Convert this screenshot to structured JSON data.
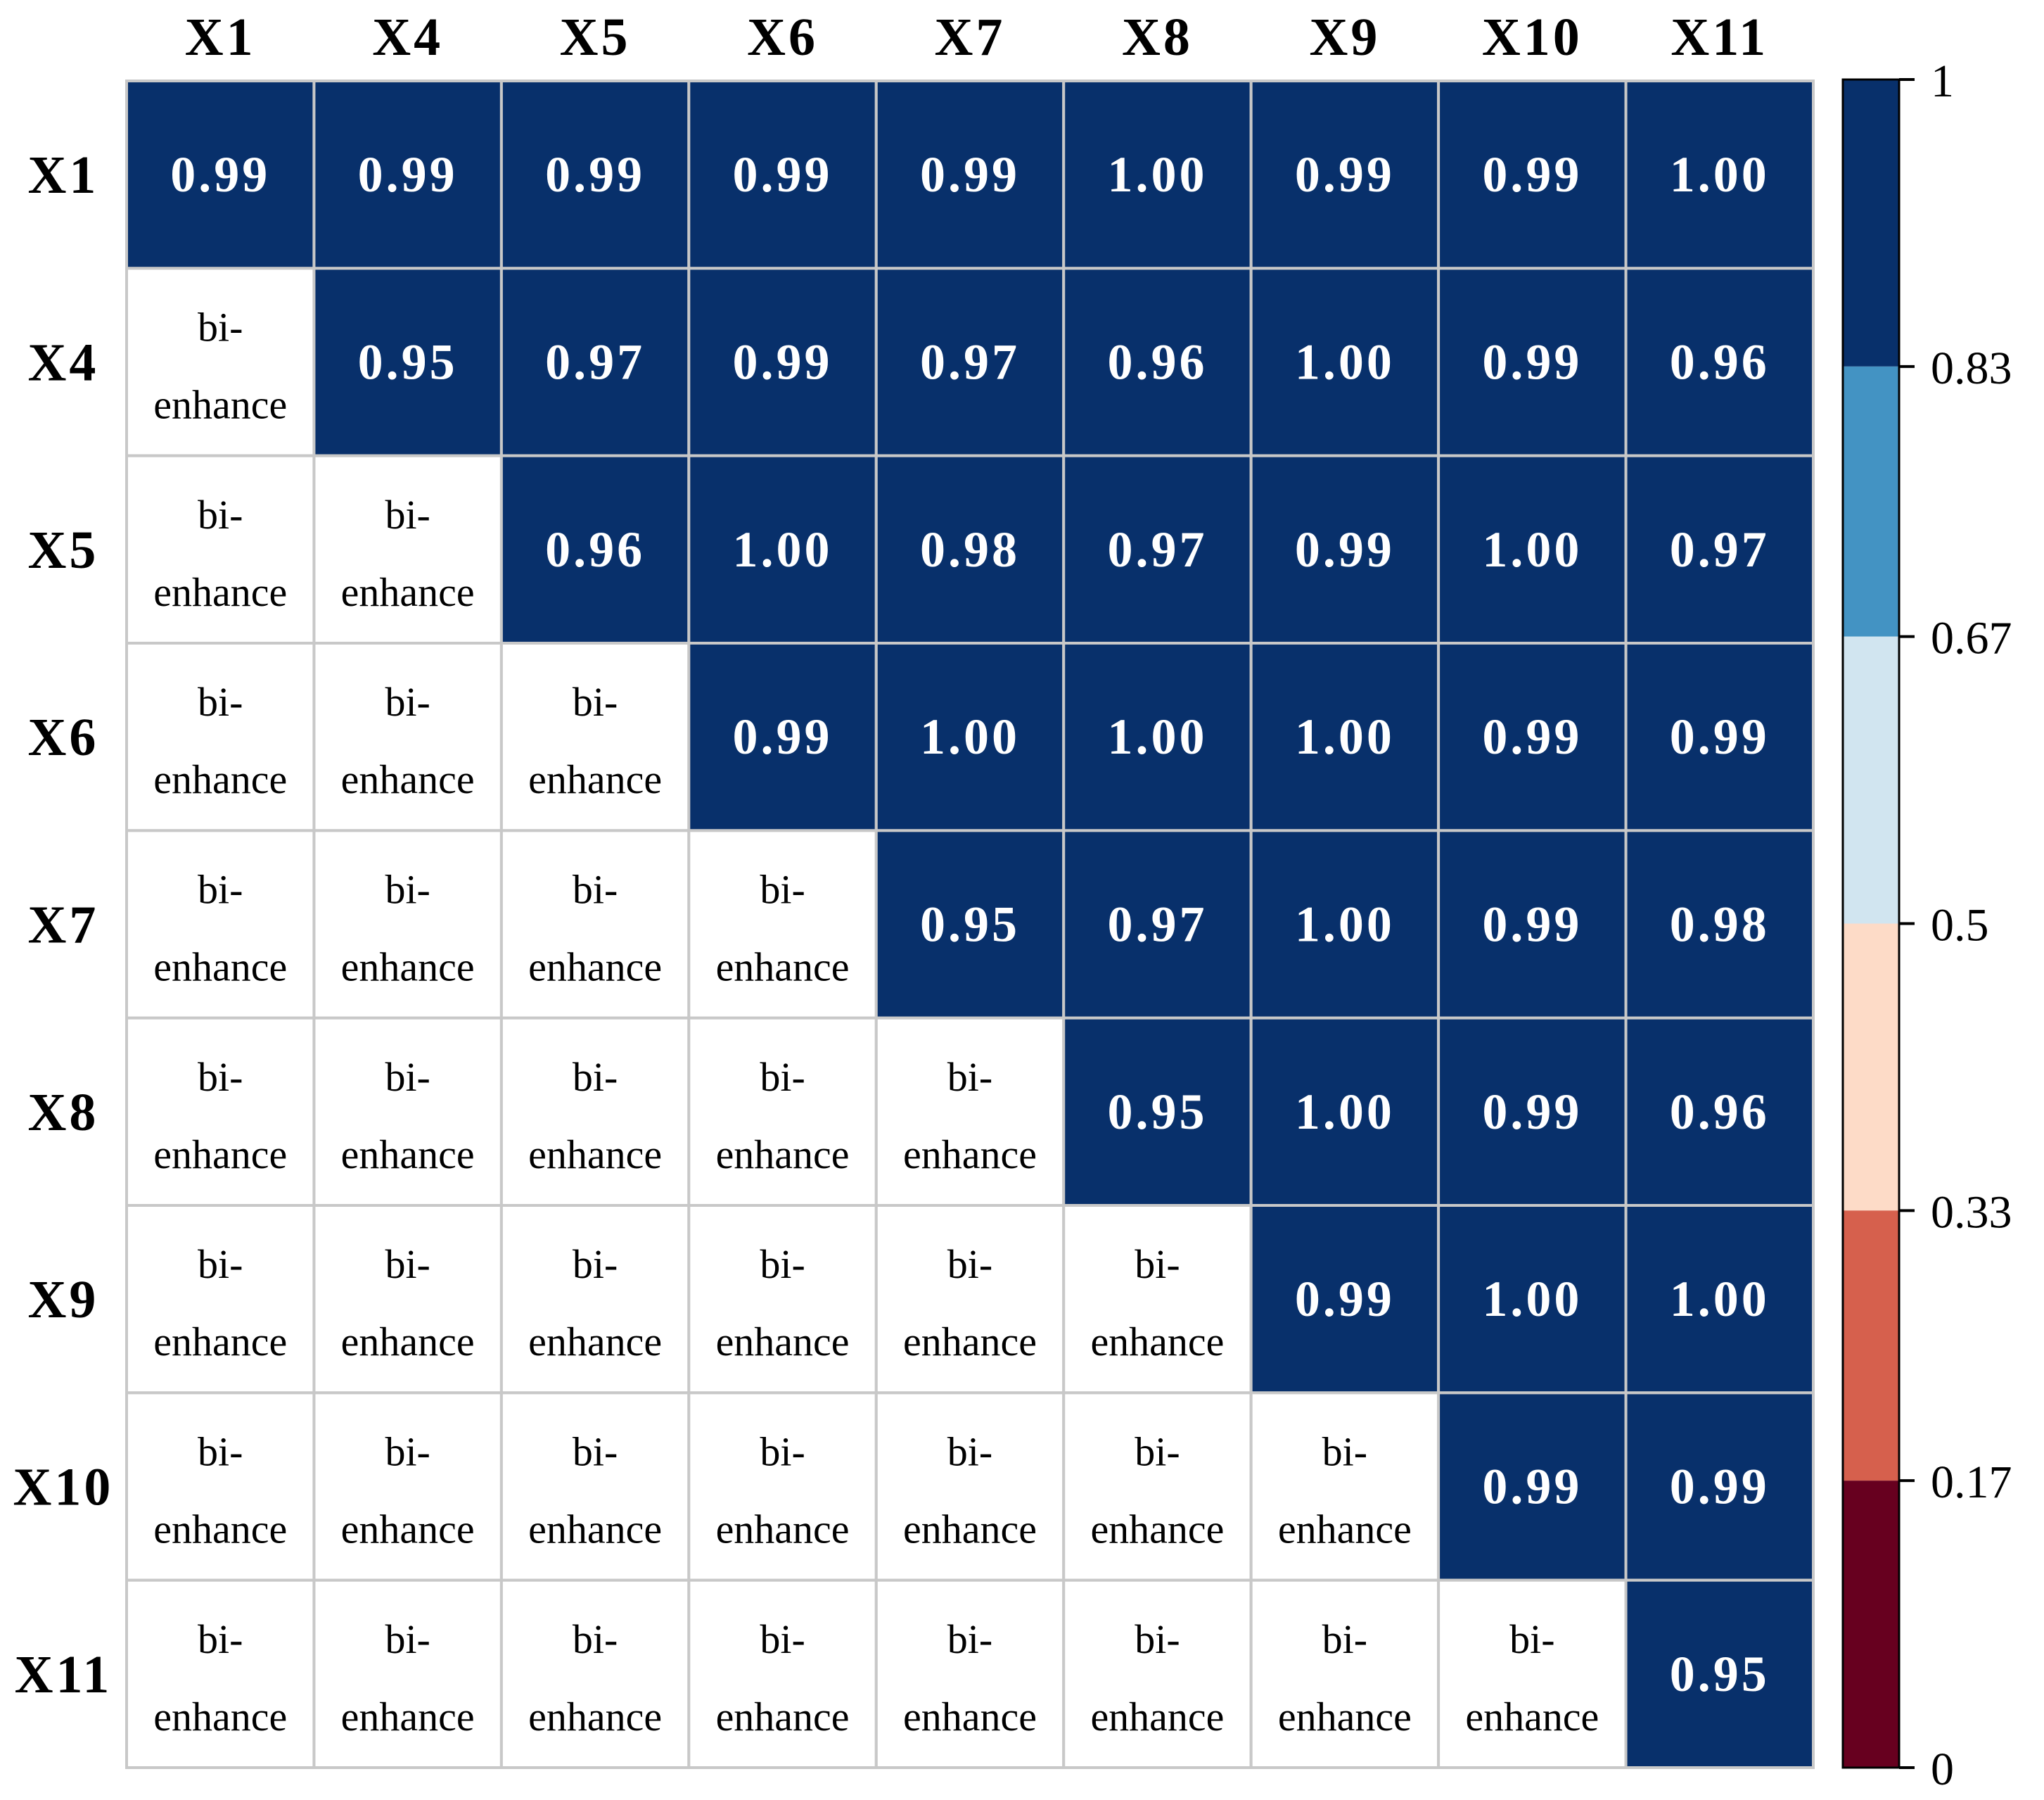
{
  "chart_data": {
    "type": "heatmap",
    "title": "",
    "variables": [
      "X1",
      "X4",
      "X5",
      "X6",
      "X7",
      "X8",
      "X9",
      "X10",
      "X11"
    ],
    "upper_triangle_values": [
      [
        0.99,
        0.99,
        0.99,
        0.99,
        0.99,
        1.0,
        0.99,
        0.99,
        1.0
      ],
      [
        null,
        0.95,
        0.97,
        0.99,
        0.97,
        0.96,
        1.0,
        0.99,
        0.96
      ],
      [
        null,
        null,
        0.96,
        1.0,
        0.98,
        0.97,
        0.99,
        1.0,
        0.97
      ],
      [
        null,
        null,
        null,
        0.99,
        1.0,
        1.0,
        1.0,
        0.99,
        0.99
      ],
      [
        null,
        null,
        null,
        null,
        0.95,
        0.97,
        1.0,
        0.99,
        0.98
      ],
      [
        null,
        null,
        null,
        null,
        null,
        0.95,
        1.0,
        0.99,
        0.96
      ],
      [
        null,
        null,
        null,
        null,
        null,
        null,
        0.99,
        1.0,
        1.0
      ],
      [
        null,
        null,
        null,
        null,
        null,
        null,
        null,
        0.99,
        0.99
      ],
      [
        null,
        null,
        null,
        null,
        null,
        null,
        null,
        null,
        0.95
      ]
    ],
    "lower_triangle_label": [
      "bi-",
      "enhance"
    ],
    "value_range": [
      0,
      1
    ],
    "colorbar": {
      "ticks": [
        "1",
        "0.83",
        "0.67",
        "0.5",
        "0.33",
        "0.17",
        "0"
      ],
      "bins": [
        {
          "from": 0.83,
          "to": 1.0,
          "color": "#08306b"
        },
        {
          "from": 0.67,
          "to": 0.83,
          "color": "#4393c3"
        },
        {
          "from": 0.5,
          "to": 0.67,
          "color": "#d1e5f0"
        },
        {
          "from": 0.33,
          "to": 0.5,
          "color": "#fddbc7"
        },
        {
          "from": 0.17,
          "to": 0.33,
          "color": "#d6604d"
        },
        {
          "from": 0.0,
          "to": 0.17,
          "color": "#67001f"
        }
      ]
    },
    "cell_text_color": "#ffffff",
    "lower_cell_background": "#ffffff",
    "grid_color": "#c8c8c8"
  }
}
